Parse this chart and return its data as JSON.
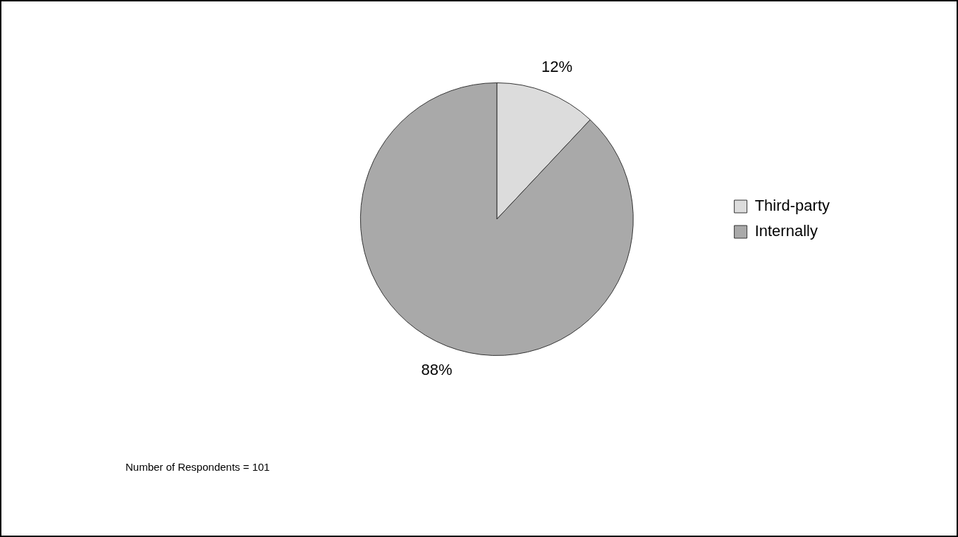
{
  "chart_data": {
    "type": "pie",
    "categories": [
      "Third-party",
      "Internally"
    ],
    "values": [
      12,
      88
    ],
    "colors": [
      "#dcdcdc",
      "#a9a9a9"
    ],
    "value_labels": [
      "12%",
      "88%"
    ],
    "legend": "right",
    "annotations": [
      "Number of Respondents = 101"
    ]
  }
}
